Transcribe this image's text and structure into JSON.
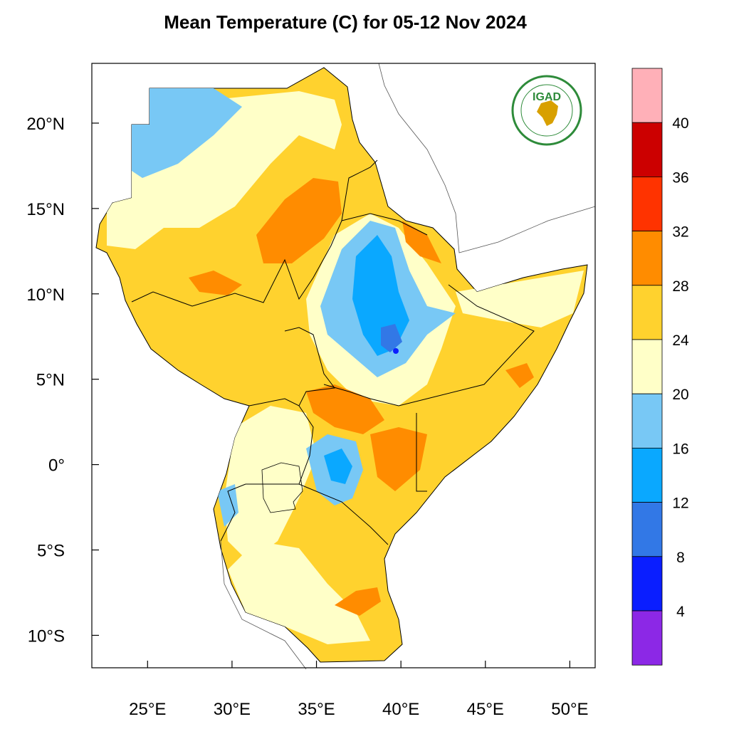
{
  "title": "Mean Temperature (C) for 05-12 Nov 2024",
  "logo": {
    "text": "IGAD",
    "ring_text": "INTERGOVERNMENTAL AUTHORITY ON DEVELOPMENT"
  },
  "axes": {
    "lat_ticks": [
      "20°N",
      "15°N",
      "10°N",
      "5°N",
      "0°",
      "5°S",
      "10°S"
    ],
    "lat_values": [
      20,
      15,
      10,
      5,
      0,
      -5,
      -10
    ],
    "lon_ticks": [
      "25°E",
      "30°E",
      "35°E",
      "40°E",
      "45°E",
      "50°E"
    ],
    "lon_values": [
      25,
      30,
      35,
      40,
      45,
      50
    ]
  },
  "legend": {
    "labels": [
      "40",
      "36",
      "32",
      "28",
      "24",
      "20",
      "16",
      "12",
      "8",
      "4"
    ],
    "colors": [
      "#ffb0b8",
      "#cc0000",
      "#ff3300",
      "#ff8c00",
      "#ffd22e",
      "#ffffc8",
      "#78c8f5",
      "#0aa8ff",
      "#3278e6",
      "#0a1eff",
      "#8c28e6"
    ]
  },
  "chart_data": {
    "type": "heatmap",
    "title": "Mean Temperature (C) for 05-12 Nov 2024",
    "x_range_deg_e": [
      21.7,
      51.5
    ],
    "y_range_deg_n": [
      -11.9,
      23.5
    ],
    "color_scale_breaks_c": [
      4,
      8,
      12,
      16,
      20,
      24,
      28,
      32,
      36,
      40
    ],
    "color_scale_colors": [
      "#8c28e6",
      "#0a1eff",
      "#3278e6",
      "#0aa8ff",
      "#78c8f5",
      "#ffffc8",
      "#ffd22e",
      "#ff8c00",
      "#ff3300",
      "#cc0000",
      "#ffb0b8"
    ]
  }
}
